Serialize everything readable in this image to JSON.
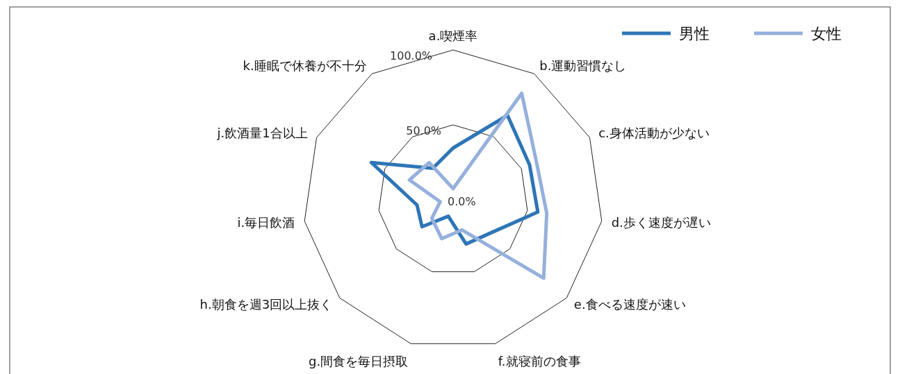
{
  "chart_data": {
    "type": "radar",
    "categories": [
      "a.喫煙率",
      "b.運動習慣なし",
      "c.身体活動が少ない",
      "d.歩く速度が遅い",
      "e.食べる速度が速い",
      "f.就寝前の食事",
      "g.間食を毎日摂取",
      "h.朝食を週3回以上抜く",
      "i.毎日飲酒",
      "j.飲酒量1合以上",
      "k.睡眠で休養が不十分"
    ],
    "series": [
      {
        "name": "男性",
        "color": "#2e75b6",
        "values": [
          34.6,
          67,
          56,
          57,
          33.5,
          30.7,
          11.4,
          27.4,
          24.3,
          59.9,
          25
        ]
      },
      {
        "name": "女性",
        "color": "#95b0dc",
        "values": [
          7.5,
          84.5,
          61,
          63,
          79.8,
          20.9,
          27,
          18.8,
          8.7,
          32,
          29.5
        ]
      }
    ],
    "ylim": [
      0,
      100
    ],
    "yticks": [
      {
        "value": 0,
        "label": "0.0%"
      },
      {
        "value": 50,
        "label": "50.0%"
      },
      {
        "value": 100,
        "label": "100.0%"
      }
    ],
    "grid": true,
    "legend": "top right"
  }
}
